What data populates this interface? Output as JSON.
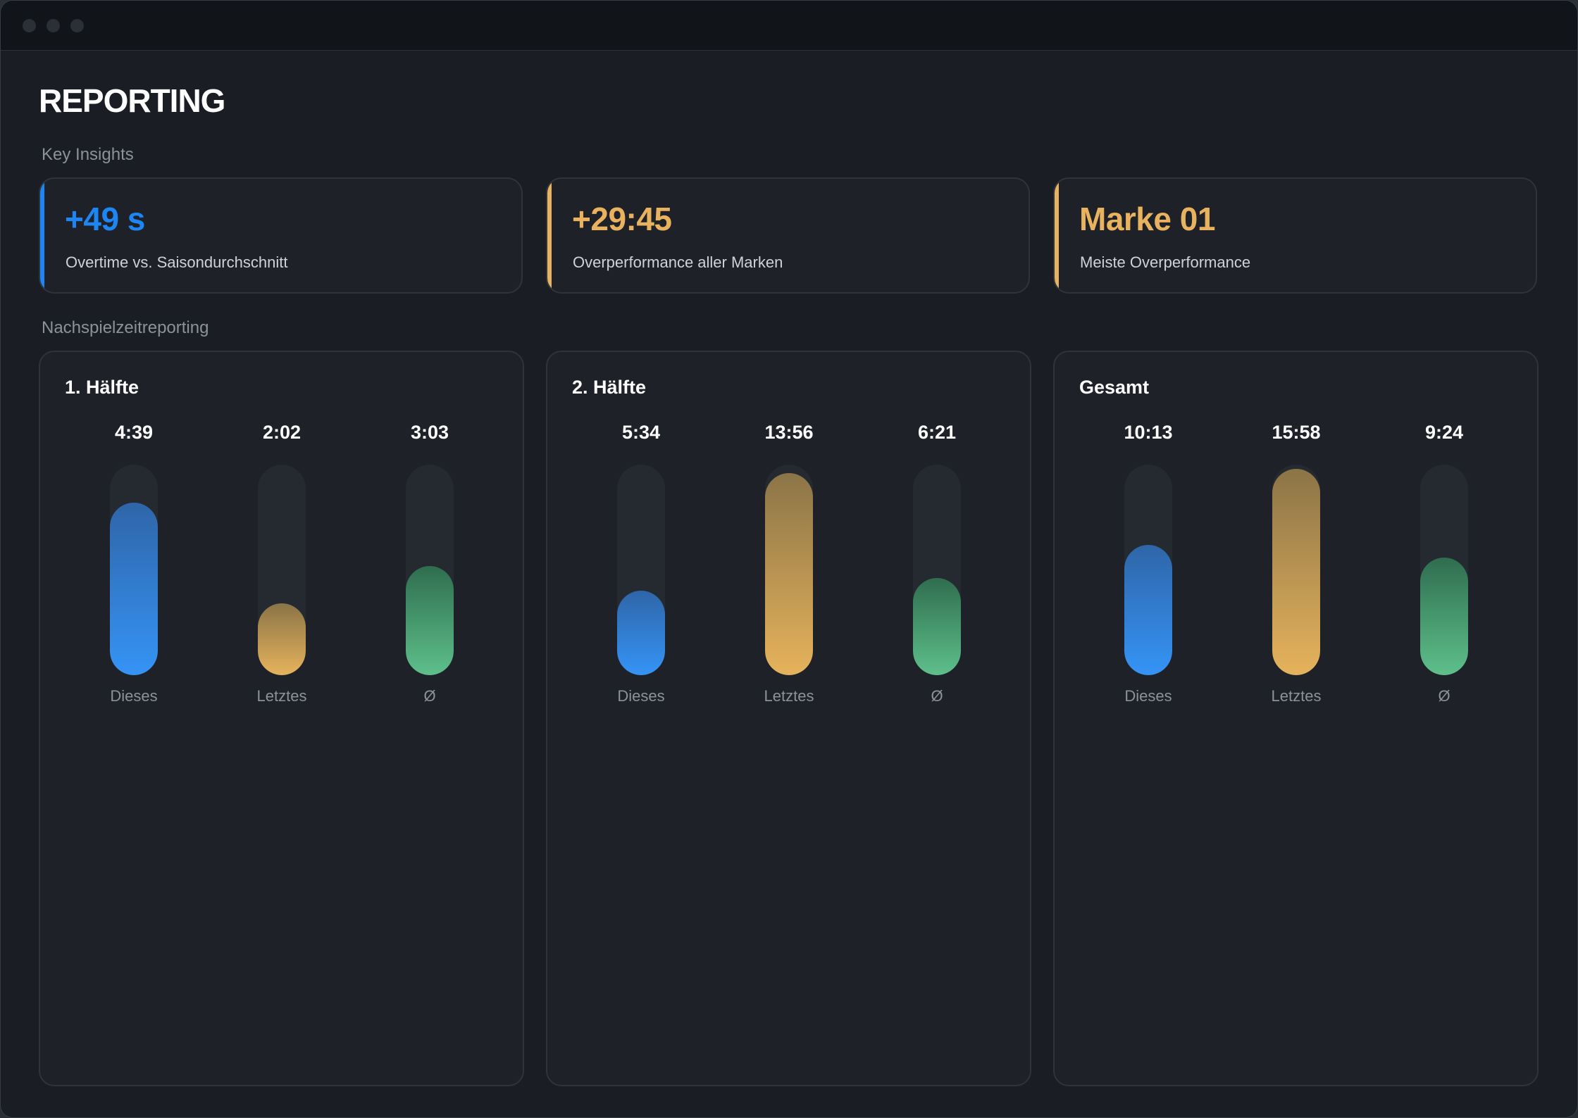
{
  "page": {
    "title": "REPORTING"
  },
  "sections": {
    "insights_label": "Key Insights",
    "charts_label": "Nachspielzeitreporting"
  },
  "insights": [
    {
      "value": "+49 s",
      "description": "Overtime vs. Saisondurchschnitt",
      "color": "#1e86f2"
    },
    {
      "value": "+29:45",
      "description": "Overperformance aller Marken",
      "color": "#e8b25e"
    },
    {
      "value": "Marke 01",
      "description": "Meiste Overperformance",
      "color": "#e8b25e"
    }
  ],
  "chart_data": [
    {
      "type": "bar",
      "title": "1. Hälfte",
      "categories": [
        "Dieses",
        "Letztes",
        "Ø"
      ],
      "value_labels": [
        "4:39",
        "2:02",
        "3:03"
      ],
      "values_fraction_of_max": [
        0.82,
        0.34,
        0.52
      ],
      "colors": [
        "blue",
        "gold",
        "green"
      ]
    },
    {
      "type": "bar",
      "title": "2. Hälfte",
      "categories": [
        "Dieses",
        "Letztes",
        "Ø"
      ],
      "value_labels": [
        "5:34",
        "13:56",
        "6:21"
      ],
      "values_fraction_of_max": [
        0.4,
        0.96,
        0.46
      ],
      "colors": [
        "blue",
        "gold",
        "green"
      ]
    },
    {
      "type": "bar",
      "title": "Gesamt",
      "categories": [
        "Dieses",
        "Letztes",
        "Ø"
      ],
      "value_labels": [
        "10:13",
        "15:58",
        "9:24"
      ],
      "values_fraction_of_max": [
        0.62,
        0.98,
        0.56
      ],
      "colors": [
        "blue",
        "gold",
        "green"
      ]
    }
  ]
}
